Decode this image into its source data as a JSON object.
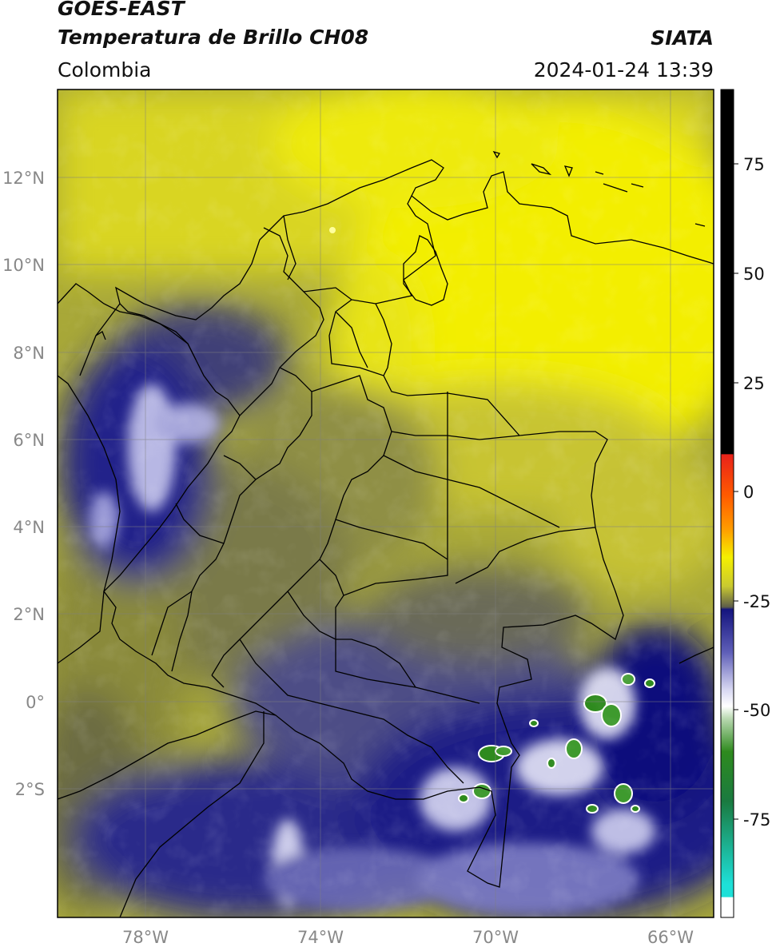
{
  "header": {
    "satellite": "GOES-EAST",
    "product": "Temperatura de Brillo CH08",
    "region": "Colombia",
    "brand": "SIATA",
    "timestamp": "2024-01-24 13:39"
  },
  "map": {
    "lon_range": [
      -80,
      -65
    ],
    "lat_range": [
      -5,
      14
    ],
    "lat_ticks": [
      "12°N",
      "10°N",
      "8°N",
      "6°N",
      "4°N",
      "2°N",
      "0°",
      "2°S"
    ],
    "lon_ticks": [
      "78°W",
      "74°W",
      "70°W",
      "66°W"
    ],
    "grid": true,
    "country": "Colombia"
  },
  "colorbar": {
    "range": [
      -95,
      90
    ],
    "ticks": [
      "75",
      "50",
      "25",
      "0",
      "-25",
      "-50",
      "-75"
    ],
    "colors": {
      "black_top": "#000000",
      "red": "#e8221a",
      "orange": "#ff9a00",
      "yellow": "#f5f000",
      "olive": "#8f8f40",
      "navy": "#14147e",
      "lavender": "#9a9ad8",
      "white": "#ffffff",
      "green": "#2e8a1e",
      "cyan": "#1ee0d8"
    }
  }
}
